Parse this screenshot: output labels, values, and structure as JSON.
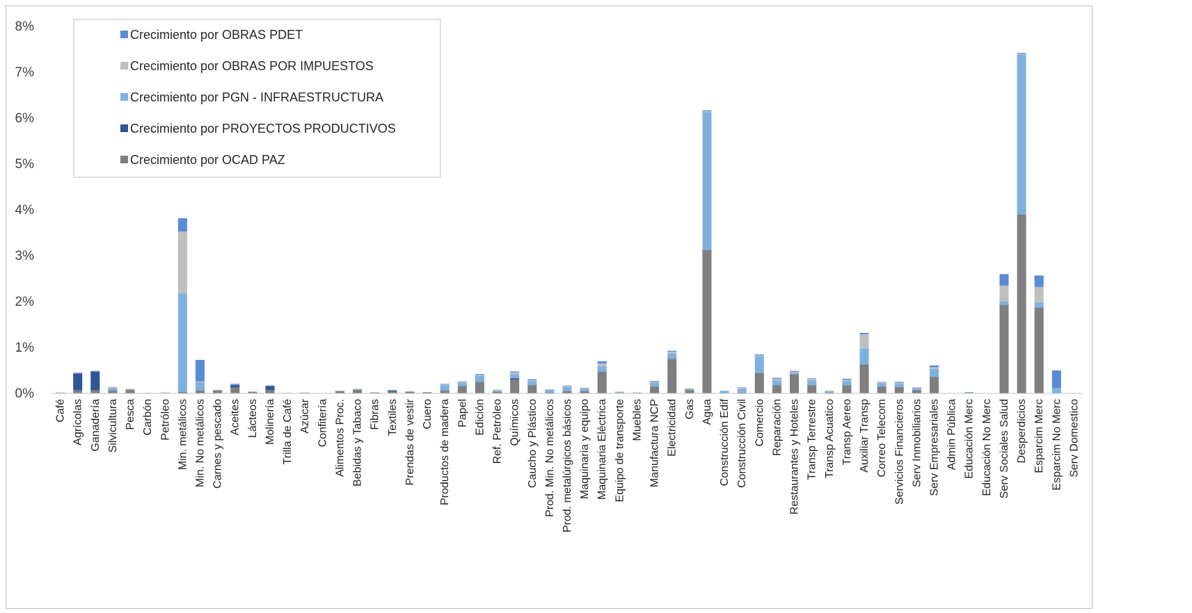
{
  "chart_data": {
    "type": "bar",
    "stacked": true,
    "categories": [
      "Café",
      "Agrícolas",
      "Ganadería",
      "Silvicultura",
      "Pesca",
      "Carbón",
      "Petróleo",
      "Min. metálicos",
      "Min. No metálicos",
      "Carnes y pescado",
      "Aceites",
      "Lácteos",
      "Molinería",
      "Trilla de Café",
      "Azúcar",
      "Confitería",
      "Alimentos Proc.",
      "Bebidas y Tabaco",
      "Fibras",
      "Textiles",
      "Prendas de vestir",
      "Cuero",
      "Productos de madera",
      "Papel",
      "Edición",
      "Ref. Petróleo",
      "Químicos",
      "Caucho y Plástico",
      "Prod. Min. No metálicos",
      "Prod. metalúrgicos básicos",
      "Maquinaria y equipo",
      "Maquinaria Eléctrica",
      "Equipo de transporte",
      "Muebles",
      "Manufactura NCP",
      "Electricidad",
      "Gas",
      "Agua",
      "Construcción Edif",
      "Construcción Civil",
      "Comercio",
      "Reparación",
      "Restaurantes y Hoteles",
      "Transp Terrestre",
      "Transp Acuatico",
      "Transp Aereo",
      "Auxiliar Transp",
      "Correo Telecom",
      "Servicios Financieros",
      "Serv Inmobiliarios",
      "Serv Empresariales",
      "Admin Pública",
      "Educación Merc",
      "Educación No Merc",
      "Serv Sociales Salud",
      "Desperdicios",
      "Esparcim Merc",
      "Esparcim No Merc",
      "Serv Domestico"
    ],
    "series": [
      {
        "name": "Crecimiento por OCAD PAZ",
        "color": "#7f7f7f",
        "values": [
          0.01,
          0.07,
          0.07,
          0.06,
          0.08,
          0.01,
          0.01,
          0.03,
          0.06,
          0.05,
          0.13,
          0.03,
          0.07,
          0.01,
          0.01,
          0,
          0.05,
          0.08,
          0.02,
          0.04,
          0.03,
          0.02,
          0.06,
          0.16,
          0.25,
          0.03,
          0.3,
          0.18,
          0.02,
          0.05,
          0.05,
          0.47,
          0.01,
          0.01,
          0.15,
          0.75,
          0.07,
          3.13,
          0.01,
          0.02,
          0.45,
          0.18,
          0.42,
          0.18,
          0.02,
          0.18,
          0.63,
          0.15,
          0.14,
          0.07,
          0.36,
          0,
          0.01,
          0,
          1.93,
          3.9,
          1.87,
          0,
          0
        ]
      },
      {
        "name": "Crecimiento por PROYECTOS PRODUCTIVOS",
        "color": "#2f5597",
        "values": [
          0,
          0.36,
          0.4,
          0,
          0,
          0,
          0,
          0,
          0,
          0.01,
          0.05,
          0,
          0.09,
          0,
          0,
          0,
          0,
          0,
          0,
          0.02,
          0,
          0,
          0,
          0,
          0,
          0,
          0.03,
          0,
          0,
          0,
          0,
          0,
          0,
          0,
          0,
          0,
          0,
          0,
          0,
          0,
          0,
          0,
          0,
          0,
          0,
          0,
          0,
          0,
          0,
          0,
          0,
          0,
          0,
          0,
          0,
          0,
          0,
          0,
          0
        ]
      },
      {
        "name": "Crecimiento por PGN - INFRAESTRUCTURA",
        "color": "#7eb1e1",
        "values": [
          0.01,
          0,
          0,
          0.06,
          0,
          0,
          0.01,
          2.15,
          0.18,
          0,
          0.01,
          0.01,
          0,
          0,
          0.01,
          0,
          0,
          0.01,
          0,
          0.01,
          0.01,
          0.01,
          0.12,
          0.07,
          0.13,
          0.04,
          0.09,
          0.09,
          0.06,
          0.09,
          0.05,
          0.12,
          0.02,
          0.01,
          0.08,
          0.12,
          0.03,
          3.0,
          0.04,
          0.08,
          0.36,
          0.1,
          0.03,
          0.1,
          0.03,
          0.09,
          0.35,
          0.07,
          0.07,
          0.04,
          0.17,
          0,
          0.02,
          0,
          0.07,
          3.48,
          0.11,
          0.12,
          0
        ]
      },
      {
        "name": "Crecimiento por OBRAS POR IMPUESTOS",
        "color": "#bfbfbf",
        "values": [
          0,
          0,
          0,
          0.02,
          0.02,
          0,
          0,
          1.35,
          0.02,
          0.02,
          0,
          0,
          0,
          0,
          0,
          0,
          0.01,
          0.01,
          0,
          0.01,
          0.01,
          0,
          0.02,
          0.02,
          0.02,
          0.01,
          0.04,
          0.02,
          0.01,
          0.02,
          0.01,
          0.06,
          0.01,
          0,
          0.02,
          0.04,
          0.01,
          0.02,
          0.01,
          0.02,
          0.02,
          0.04,
          0.02,
          0.04,
          0.01,
          0.03,
          0.31,
          0.02,
          0.02,
          0.01,
          0.04,
          0,
          0,
          0,
          0.35,
          0.02,
          0.34,
          0,
          0
        ]
      },
      {
        "name": "Crecimiento por OBRAS PDET",
        "color": "#5b8bd5",
        "values": [
          0,
          0.02,
          0.02,
          0,
          0,
          0,
          0,
          0.29,
          0.47,
          0,
          0.02,
          0,
          0.01,
          0,
          0,
          0,
          0,
          0,
          0,
          0,
          0,
          0,
          0.01,
          0.01,
          0.02,
          0,
          0.02,
          0.02,
          0,
          0.01,
          0.01,
          0.05,
          0,
          0,
          0.02,
          0.02,
          0,
          0.02,
          0,
          0.01,
          0.02,
          0.02,
          0.02,
          0.01,
          0,
          0.02,
          0.03,
          0.01,
          0.02,
          0.01,
          0.04,
          0,
          0,
          0,
          0.25,
          0.02,
          0.25,
          0.38,
          0
        ]
      }
    ],
    "legend_order": [
      4,
      3,
      2,
      1,
      0
    ],
    "ylim": [
      0,
      8
    ],
    "yticks": [
      "0%",
      "1%",
      "2%",
      "3%",
      "4%",
      "5%",
      "6%",
      "7%",
      "8%"
    ],
    "grid": false,
    "legend_position": "top-left"
  }
}
